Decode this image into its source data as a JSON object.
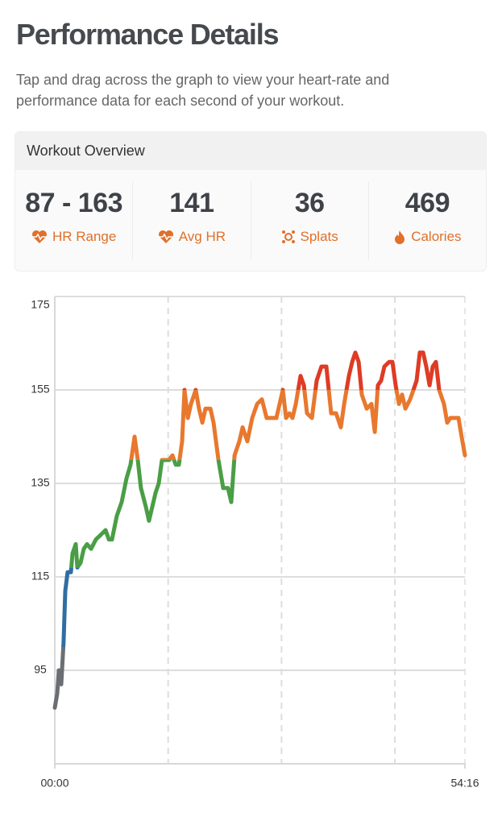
{
  "header": {
    "title": "Performance Details",
    "subtitle": "Tap and drag across the graph to view your heart-rate and performance data for each second of your workout."
  },
  "overview": {
    "title": "Workout Overview",
    "stats": [
      {
        "value": "87 - 163",
        "label": "HR Range"
      },
      {
        "value": "141",
        "label": "Avg HR"
      },
      {
        "value": "36",
        "label": "Splats"
      },
      {
        "value": "469",
        "label": "Calories"
      }
    ]
  },
  "chart_data": {
    "type": "line",
    "x": [
      0,
      19,
      32,
      51,
      70,
      83,
      102,
      128,
      141,
      166,
      179,
      205,
      230,
      256,
      288,
      326,
      365,
      403,
      429,
      454,
      492,
      531,
      569,
      601,
      633,
      659,
      684,
      723,
      748,
      774,
      800,
      825,
      851,
      883,
      908,
      934,
      960,
      985,
      1011,
      1030,
      1056,
      1081,
      1119,
      1145,
      1171,
      1196,
      1235,
      1260,
      1299,
      1337,
      1375,
      1401,
      1427,
      1465,
      1491,
      1529,
      1567,
      1606,
      1644,
      1682,
      1721,
      1759,
      1785,
      1810,
      1836,
      1862,
      1887,
      1913,
      1951,
      1977,
      2002,
      2041,
      2079,
      2117,
      2156,
      2194,
      2233,
      2271,
      2297,
      2335,
      2361,
      2386,
      2412,
      2437,
      2476,
      2514,
      2540,
      2565,
      2591,
      2616,
      2655,
      2680,
      2706,
      2732,
      2757,
      2783,
      2821,
      2847,
      2872,
      2898,
      2924,
      2949,
      2975,
      3000,
      3026,
      3051,
      3090,
      3115,
      3141,
      3179,
      3205,
      3230,
      3256
    ],
    "values": [
      87,
      90,
      95,
      92,
      101,
      112,
      116,
      116,
      120,
      122,
      117,
      118,
      121,
      122,
      121,
      123,
      124,
      125,
      123,
      123,
      128,
      131,
      136,
      139,
      145,
      140,
      134,
      130,
      127,
      130,
      133,
      135,
      140,
      140,
      140,
      141,
      139,
      139,
      144,
      155,
      149,
      152,
      155,
      151,
      148,
      151,
      151,
      148,
      140,
      134,
      134,
      131,
      141,
      144,
      147,
      144,
      149,
      152,
      153,
      149,
      149,
      149,
      152,
      155,
      149,
      150,
      149,
      152,
      158,
      156,
      150,
      149,
      157,
      160,
      160,
      150,
      150,
      147,
      152,
      158,
      161,
      163,
      161,
      154,
      151,
      152,
      146,
      156,
      157,
      160,
      161,
      161,
      156,
      152,
      154,
      151,
      153,
      155,
      157,
      163,
      163,
      160,
      156,
      160,
      161,
      155,
      152,
      148,
      149,
      149,
      149,
      145,
      141
    ],
    "xlim": [
      0,
      3256
    ],
    "xticks": [
      {
        "value": 0,
        "label": "00:00"
      },
      {
        "value": 3256,
        "label": "54:16"
      }
    ],
    "xgrid": [
      900,
      1800,
      2700
    ],
    "ylim": [
      75,
      175
    ],
    "yticks": [
      95,
      115,
      135,
      155,
      175
    ],
    "grid": true,
    "zone_thresholds": [
      100,
      117,
      140,
      155
    ],
    "zone_colors": [
      "#6b6e72",
      "#2f6ea2",
      "#4a9e45",
      "#e8782e",
      "#df3b25"
    ]
  }
}
